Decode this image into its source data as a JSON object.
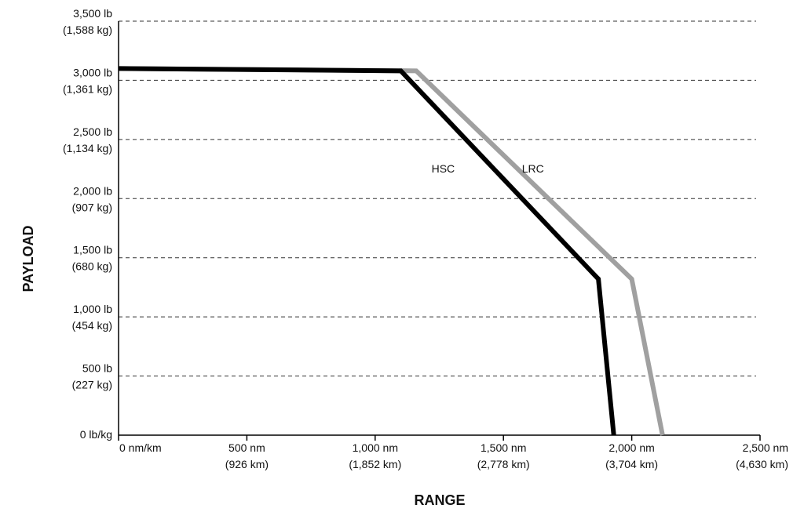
{
  "chart_data": {
    "type": "line",
    "xlabel": "RANGE",
    "ylabel": "PAYLOAD",
    "xlim": [
      0,
      2500
    ],
    "ylim": [
      0,
      3500
    ],
    "grid": "horizontal-dashed",
    "x_ticks": [
      {
        "value": 0,
        "line1": "0 nm/km",
        "line2": ""
      },
      {
        "value": 500,
        "line1": "500 nm",
        "line2": "(926 km)"
      },
      {
        "value": 1000,
        "line1": "1,000 nm",
        "line2": "(1,852 km)"
      },
      {
        "value": 1500,
        "line1": "1,500 nm",
        "line2": "(2,778 km)"
      },
      {
        "value": 2000,
        "line1": "2,000 nm",
        "line2": "(3,704 km)"
      },
      {
        "value": 2500,
        "line1": "2,500 nm",
        "line2": "(4,630 km)"
      }
    ],
    "y_ticks": [
      {
        "value": 0,
        "line1": "0 lb/kg",
        "line2": ""
      },
      {
        "value": 500,
        "line1": "500 lb",
        "line2": "(227 kg)"
      },
      {
        "value": 1000,
        "line1": "1,000 lb",
        "line2": "(454 kg)"
      },
      {
        "value": 1500,
        "line1": "1,500 lb",
        "line2": "(680 kg)"
      },
      {
        "value": 2000,
        "line1": "2,000 lb",
        "line2": "(907 kg)"
      },
      {
        "value": 2500,
        "line1": "2,500 lb",
        "line2": "(1,134 kg)"
      },
      {
        "value": 3000,
        "line1": "3,000 lb",
        "line2": "(1,361 kg)"
      },
      {
        "value": 3500,
        "line1": "3,500 lb",
        "line2": "(1,588 kg)"
      }
    ],
    "series": [
      {
        "name": "LRC",
        "color": "#a0a0a0",
        "points": [
          [
            0,
            3100
          ],
          [
            1160,
            3080
          ],
          [
            2000,
            1320
          ],
          [
            2120,
            0
          ]
        ],
        "label_at": [
          1615,
          2220
        ]
      },
      {
        "name": "HSC",
        "color": "#000000",
        "points": [
          [
            0,
            3100
          ],
          [
            1100,
            3080
          ],
          [
            1870,
            1320
          ],
          [
            1930,
            0
          ]
        ],
        "label_at": [
          1265,
          2220
        ]
      }
    ]
  }
}
